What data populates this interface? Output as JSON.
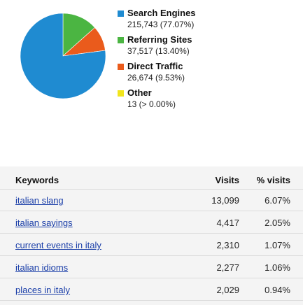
{
  "colors": {
    "search_engines": "#1f8bd1",
    "referring_sites": "#4bb542",
    "direct_traffic": "#ea5b1c",
    "other": "#f1e51d"
  },
  "chart_data": {
    "type": "pie",
    "categories": [
      "Search Engines",
      "Referring Sites",
      "Direct Traffic",
      "Other"
    ],
    "values": [
      215743,
      37517,
      26674,
      13
    ],
    "percent_labels": [
      "77.07%",
      "13.40%",
      "9.53%",
      "> 0.00%"
    ],
    "colors": [
      "#1f8bd1",
      "#4bb542",
      "#ea5b1c",
      "#f1e51d"
    ]
  },
  "legend": [
    {
      "label": "Search Engines",
      "value": "215,743 (77.07%)"
    },
    {
      "label": "Referring Sites",
      "value": "37,517 (13.40%)"
    },
    {
      "label": "Direct Traffic",
      "value": "26,674 (9.53%)"
    },
    {
      "label": "Other",
      "value": "13 (> 0.00%)"
    }
  ],
  "table": {
    "headers": {
      "keywords": "Keywords",
      "visits": "Visits",
      "pct": "% visits"
    },
    "rows": [
      {
        "keyword": "italian slang",
        "visits": "13,099",
        "pct": "6.07%"
      },
      {
        "keyword": "italian sayings",
        "visits": "4,417",
        "pct": "2.05%"
      },
      {
        "keyword": "current events in italy",
        "visits": "2,310",
        "pct": "1.07%"
      },
      {
        "keyword": "italian idioms",
        "visits": "2,277",
        "pct": "1.06%"
      },
      {
        "keyword": "places in italy",
        "visits": "2,029",
        "pct": "0.94%"
      }
    ]
  }
}
